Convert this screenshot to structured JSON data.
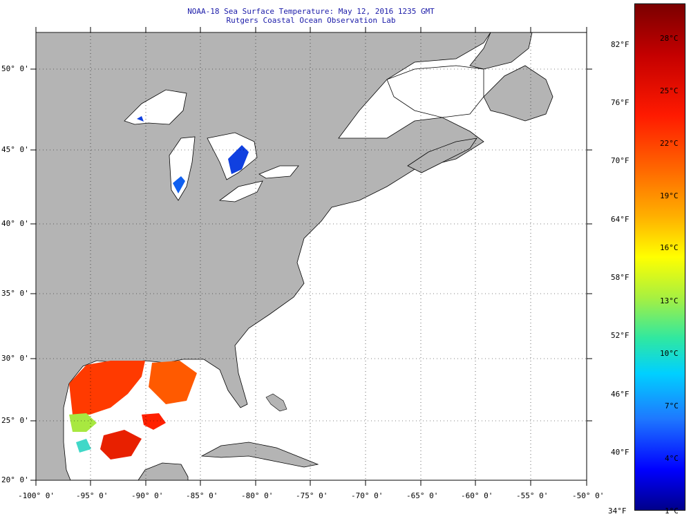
{
  "title": {
    "line1": "NOAA-18 Sea Surface Temperature:  May 12, 2016 1235 GMT",
    "line2": "Rutgers Coastal Ocean Observation Lab"
  },
  "lat_labels": [
    "50° 0'",
    "45° 0'",
    "40° 0'",
    "35° 0'",
    "30° 0'",
    "25° 0'",
    "20° 0'"
  ],
  "lon_labels": [
    "-100° 0'",
    "-95° 0'",
    "-90° 0'",
    "-85° 0'",
    "-80° 0'",
    "-75° 0'",
    "-70° 0'",
    "-65° 0'",
    "-60° 0'",
    "-55° 0'",
    "-50° 0'"
  ],
  "colorbar": {
    "fahrenheit": [
      "82°F",
      "76°F",
      "70°F",
      "64°F",
      "58°F",
      "52°F",
      "46°F",
      "40°F",
      "34°F"
    ],
    "celsius": [
      "28°C",
      "25°C",
      "22°C",
      "19°C",
      "16°C",
      "13°C",
      "10°C",
      "7°C",
      "4°C",
      "1°C"
    ]
  },
  "colors": {
    "land": "#b4b4b4",
    "ocean": "#ffffff",
    "title_text": "#1a1aa8",
    "warm": "#ff3a00",
    "cold": "#1040e0"
  }
}
